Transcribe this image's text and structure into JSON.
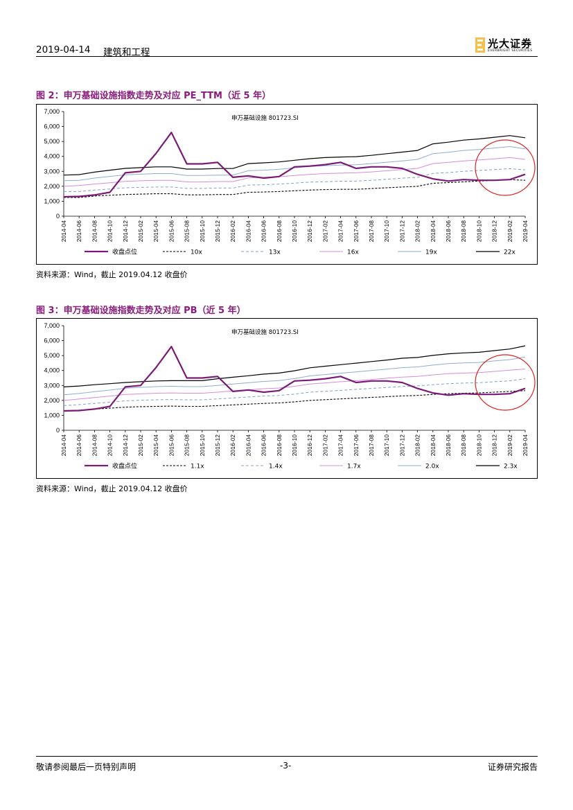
{
  "header": {
    "date": "2019-04-14",
    "sector": "建筑和工程"
  },
  "logo": {
    "cn": "光大证券",
    "en": "EVERBRIGHT SECURITIES"
  },
  "colors": {
    "title": "#8a1c7c",
    "index_line": "#7b1a76",
    "circle": "#e02020"
  },
  "figures": [
    {
      "title": "图 2：申万基础设施指数走势及对应 PE_TTM（近 5 年）",
      "source": "资料来源：Wind，截止 2019.04.12 收盘价"
    },
    {
      "title": "图 3：申万基础设施指数走势及对应 PB（近 5 年）",
      "source": "资料来源：Wind，截止 2019.04.12 收盘价"
    }
  ],
  "chart_data": [
    {
      "type": "line",
      "title": "申万基础设施 801723.SI",
      "x": [
        "2014-04",
        "2014-06",
        "2014-08",
        "2014-10",
        "2014-12",
        "2015-02",
        "2015-04",
        "2015-06",
        "2015-08",
        "2015-10",
        "2015-12",
        "2016-02",
        "2016-04",
        "2016-06",
        "2016-08",
        "2016-10",
        "2016-12",
        "2017-02",
        "2017-04",
        "2017-06",
        "2017-08",
        "2017-10",
        "2017-12",
        "2018-02",
        "2018-04",
        "2018-06",
        "2018-08",
        "2018-10",
        "2018-12",
        "2019-02",
        "2019-04"
      ],
      "yticks": [
        "0",
        "1,000",
        "2,000",
        "3,000",
        "4,000",
        "5,000",
        "6,000",
        "7,000"
      ],
      "ylim": [
        0,
        7000
      ],
      "legend_position": "bottom",
      "series": [
        {
          "name": "收盘点位",
          "values": [
            1300,
            1320,
            1420,
            1600,
            2900,
            3000,
            4200,
            5600,
            3500,
            3500,
            3600,
            2600,
            2700,
            2550,
            2650,
            3300,
            3350,
            3450,
            3600,
            3200,
            3300,
            3300,
            3200,
            2800,
            2500,
            2350,
            2450,
            2400,
            2400,
            2450,
            2800
          ]
        },
        {
          "name": "10x",
          "values": [
            1250,
            1250,
            1350,
            1400,
            1450,
            1480,
            1500,
            1500,
            1430,
            1430,
            1450,
            1450,
            1600,
            1620,
            1650,
            1700,
            1750,
            1780,
            1800,
            1800,
            1850,
            1900,
            1950,
            2000,
            2200,
            2250,
            2300,
            2350,
            2400,
            2450,
            2400
          ]
        },
        {
          "name": "13x",
          "values": [
            1650,
            1650,
            1750,
            1820,
            1900,
            1930,
            1950,
            1950,
            1860,
            1860,
            1880,
            1880,
            2080,
            2100,
            2150,
            2210,
            2280,
            2310,
            2340,
            2350,
            2400,
            2470,
            2540,
            2600,
            2860,
            2920,
            3000,
            3060,
            3120,
            3180,
            3100
          ]
        },
        {
          "name": "16x",
          "values": [
            2000,
            2050,
            2150,
            2240,
            2330,
            2370,
            2400,
            2400,
            2290,
            2290,
            2320,
            2320,
            2560,
            2600,
            2640,
            2720,
            2800,
            2850,
            2880,
            2900,
            2960,
            3040,
            3120,
            3200,
            3520,
            3600,
            3700,
            3760,
            3840,
            3920,
            3800
          ]
        },
        {
          "name": "19x",
          "values": [
            2380,
            2400,
            2550,
            2660,
            2770,
            2810,
            2850,
            2850,
            2720,
            2720,
            2750,
            2750,
            3040,
            3080,
            3140,
            3230,
            3330,
            3380,
            3420,
            3440,
            3520,
            3610,
            3700,
            3800,
            4180,
            4280,
            4400,
            4460,
            4560,
            4660,
            4500
          ]
        },
        {
          "name": "22x",
          "values": [
            2750,
            2780,
            2950,
            3080,
            3200,
            3250,
            3300,
            3300,
            3150,
            3150,
            3190,
            3190,
            3520,
            3570,
            3630,
            3740,
            3850,
            3920,
            3960,
            3980,
            4070,
            4180,
            4290,
            4400,
            4840,
            4950,
            5090,
            5170,
            5280,
            5390,
            5250
          ]
        }
      ]
    },
    {
      "type": "line",
      "title": "申万基础设施 801723.SI",
      "x": [
        "2014-04",
        "2014-06",
        "2014-08",
        "2014-10",
        "2014-12",
        "2015-02",
        "2015-04",
        "2015-06",
        "2015-08",
        "2015-10",
        "2015-12",
        "2016-02",
        "2016-04",
        "2016-06",
        "2016-08",
        "2016-10",
        "2016-12",
        "2017-02",
        "2017-04",
        "2017-06",
        "2017-08",
        "2017-10",
        "2017-12",
        "2018-02",
        "2018-04",
        "2018-06",
        "2018-08",
        "2018-10",
        "2018-12",
        "2019-02",
        "2019-04"
      ],
      "yticks": [
        "0",
        "1,000",
        "2,000",
        "3,000",
        "4,000",
        "5,000",
        "6,000",
        "7,000"
      ],
      "ylim": [
        0,
        7000
      ],
      "legend_position": "bottom",
      "series": [
        {
          "name": "收盘点位",
          "values": [
            1300,
            1320,
            1420,
            1600,
            2900,
            3000,
            4200,
            5600,
            3500,
            3500,
            3600,
            2600,
            2700,
            2550,
            2650,
            3300,
            3350,
            3450,
            3600,
            3200,
            3300,
            3300,
            3200,
            2800,
            2500,
            2350,
            2450,
            2400,
            2400,
            2450,
            2800
          ]
        },
        {
          "name": "1.1x",
          "values": [
            1300,
            1350,
            1420,
            1480,
            1550,
            1580,
            1600,
            1620,
            1600,
            1600,
            1650,
            1700,
            1750,
            1800,
            1830,
            1900,
            2000,
            2050,
            2100,
            2150,
            2200,
            2250,
            2300,
            2330,
            2400,
            2450,
            2480,
            2500,
            2550,
            2600,
            2650
          ]
        },
        {
          "name": "1.4x",
          "values": [
            1650,
            1720,
            1800,
            1880,
            1970,
            2010,
            2040,
            2060,
            2040,
            2040,
            2100,
            2160,
            2230,
            2290,
            2330,
            2420,
            2550,
            2610,
            2670,
            2740,
            2800,
            2860,
            2930,
            2970,
            3050,
            3120,
            3160,
            3180,
            3250,
            3310,
            3450
          ]
        },
        {
          "name": "1.7x",
          "values": [
            2000,
            2090,
            2190,
            2290,
            2400,
            2440,
            2480,
            2500,
            2480,
            2480,
            2550,
            2630,
            2700,
            2780,
            2830,
            2940,
            3090,
            3170,
            3250,
            3320,
            3400,
            3480,
            3560,
            3600,
            3710,
            3790,
            3830,
            3860,
            3940,
            4020,
            4100
          ]
        },
        {
          "name": "2.0x",
          "values": [
            2380,
            2460,
            2580,
            2690,
            2820,
            2870,
            2920,
            2950,
            2920,
            2920,
            3000,
            3090,
            3180,
            3270,
            3330,
            3460,
            3640,
            3730,
            3820,
            3910,
            4000,
            4090,
            4190,
            4240,
            4360,
            4460,
            4510,
            4540,
            4640,
            4730,
            4900
          ]
        },
        {
          "name": "2.3x",
          "values": [
            2900,
            2960,
            3050,
            3120,
            3200,
            3250,
            3300,
            3320,
            3320,
            3320,
            3450,
            3550,
            3650,
            3760,
            3830,
            3980,
            4180,
            4290,
            4390,
            4490,
            4600,
            4700,
            4820,
            4870,
            5010,
            5120,
            5180,
            5220,
            5330,
            5440,
            5650
          ]
        }
      ]
    }
  ],
  "footer": {
    "left": "敬请参阅最后一页特别声明",
    "page": "-3-",
    "right": "证券研究报告"
  }
}
